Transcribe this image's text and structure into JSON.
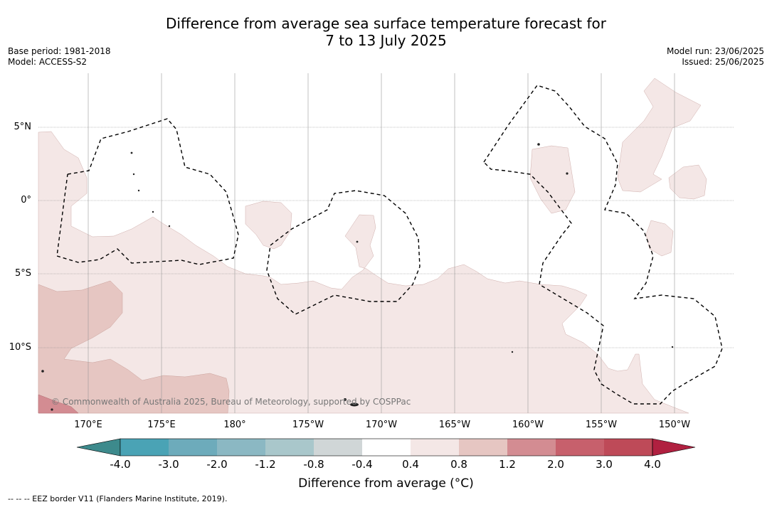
{
  "title": {
    "line1": "Difference from average sea surface temperature forecast for",
    "line2": "7 to 13 July 2025"
  },
  "meta_left": {
    "base_period": "Base period: 1981-2018",
    "model": "Model: ACCESS-S2"
  },
  "meta_right": {
    "model_run": "Model run: 23/06/2025",
    "issued": "Issued: 25/06/2025"
  },
  "map": {
    "lat_labels": [
      "5°N",
      "0°",
      "5°S",
      "10°S"
    ],
    "lon_labels": [
      "170°E",
      "175°E",
      "180°",
      "175°W",
      "170°W",
      "165°W",
      "160°W",
      "155°W",
      "150°W"
    ],
    "copyright": "© Commonwealth of Australia 2025, Bureau of Meteorology, supported by COSPPac",
    "colors": {
      "light_pink": "#f4e7e6",
      "mid_pink": "#e6c6c2",
      "dark_pink": "#d38c92"
    }
  },
  "colorbar": {
    "ticks": [
      "-4.0",
      "-3.0",
      "-2.0",
      "-1.2",
      "-0.8",
      "-0.4",
      "0.4",
      "0.8",
      "1.2",
      "2.0",
      "3.0",
      "4.0"
    ],
    "colors": [
      "#3d8a8c",
      "#4aa3b5",
      "#6dabbb",
      "#8bb8c3",
      "#a9c7cb",
      "#d0d6d7",
      "#ffffff",
      "#f4e7e6",
      "#e6c6c2",
      "#d38c92",
      "#c7606c",
      "#be4a58",
      "#b02040"
    ],
    "label": "Difference from average ($^\\circ$C)",
    "label_display": "Difference from average (°C)"
  },
  "footnote": "--  --  -- EEZ border V11 (Flanders Marine Institute, 2019)."
}
